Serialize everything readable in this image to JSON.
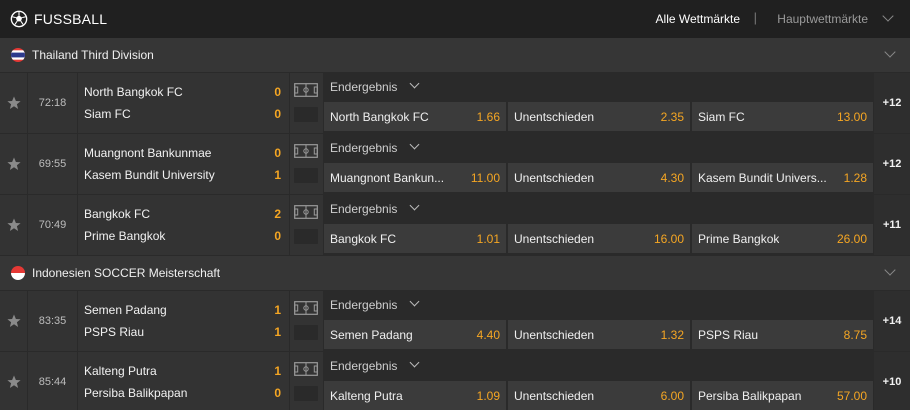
{
  "header": {
    "sport": "FUSSBALL",
    "tab_all": "Alle Wettmärkte",
    "separator": "|",
    "tab_main": "Hauptwettmärkte"
  },
  "leagues": [
    {
      "name": "Thailand Third Division",
      "flag": "thailand-flag",
      "matches": [
        {
          "time": "72:18",
          "home": "North Bangkok FC",
          "away": "Siam FC",
          "home_score": "0",
          "away_score": "0",
          "market": "Endergebnis",
          "odds": [
            {
              "label": "North Bangkok FC",
              "value": "1.66"
            },
            {
              "label": "Unentschieden",
              "value": "2.35"
            },
            {
              "label": "Siam FC",
              "value": "13.00"
            }
          ],
          "more": "+12"
        },
        {
          "time": "69:55",
          "home": "Muangnont Bankunmae",
          "away": "Kasem Bundit University",
          "home_score": "0",
          "away_score": "1",
          "market": "Endergebnis",
          "odds": [
            {
              "label": "Muangnont Bankun...",
              "value": "11.00"
            },
            {
              "label": "Unentschieden",
              "value": "4.30"
            },
            {
              "label": "Kasem Bundit Univers...",
              "value": "1.28"
            }
          ],
          "more": "+12"
        },
        {
          "time": "70:49",
          "home": "Bangkok FC",
          "away": "Prime Bangkok",
          "home_score": "2",
          "away_score": "0",
          "market": "Endergebnis",
          "odds": [
            {
              "label": "Bangkok FC",
              "value": "1.01"
            },
            {
              "label": "Unentschieden",
              "value": "16.00"
            },
            {
              "label": "Prime Bangkok",
              "value": "26.00"
            }
          ],
          "more": "+11"
        }
      ]
    },
    {
      "name": "Indonesien SOCCER Meisterschaft",
      "flag": "indonesia-flag",
      "matches": [
        {
          "time": "83:35",
          "home": "Semen Padang",
          "away": "PSPS Riau",
          "home_score": "1",
          "away_score": "1",
          "market": "Endergebnis",
          "odds": [
            {
              "label": "Semen Padang",
              "value": "4.40"
            },
            {
              "label": "Unentschieden",
              "value": "1.32"
            },
            {
              "label": "PSPS Riau",
              "value": "8.75"
            }
          ],
          "more": "+14"
        },
        {
          "time": "85:44",
          "home": "Kalteng Putra",
          "away": "Persiba Balikpapan",
          "home_score": "1",
          "away_score": "0",
          "market": "Endergebnis",
          "odds": [
            {
              "label": "Kalteng Putra",
              "value": "1.09"
            },
            {
              "label": "Unentschieden",
              "value": "6.00"
            },
            {
              "label": "Persiba Balikpapan",
              "value": "57.00"
            }
          ],
          "more": "+10"
        }
      ]
    }
  ],
  "colors": {
    "accent": "#f5a623",
    "background": "#2a2a2a",
    "row": "#333333",
    "odd_button": "#3b3b3b"
  },
  "icons": [
    "soccer-ball-icon",
    "star-icon",
    "field-icon",
    "chevron-down-icon"
  ]
}
